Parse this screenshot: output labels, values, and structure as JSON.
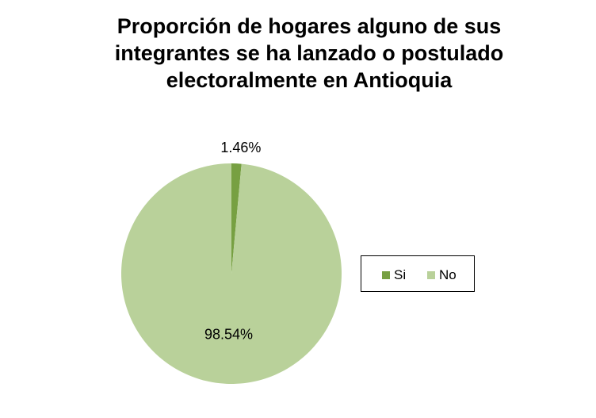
{
  "chart_data": {
    "type": "pie",
    "title": [
      "Proporción de hogares alguno de sus",
      "integrantes se ha lanzado o postulado",
      "electoralmente en Antioquia"
    ],
    "categories": [
      "Si",
      "No"
    ],
    "values": [
      1.46,
      98.54
    ],
    "labels": [
      "1.46%",
      "98.54%"
    ],
    "colors": [
      "#77A042",
      "#B9D19A"
    ],
    "legend": {
      "position": "right",
      "entries": [
        "Si",
        "No"
      ]
    }
  }
}
